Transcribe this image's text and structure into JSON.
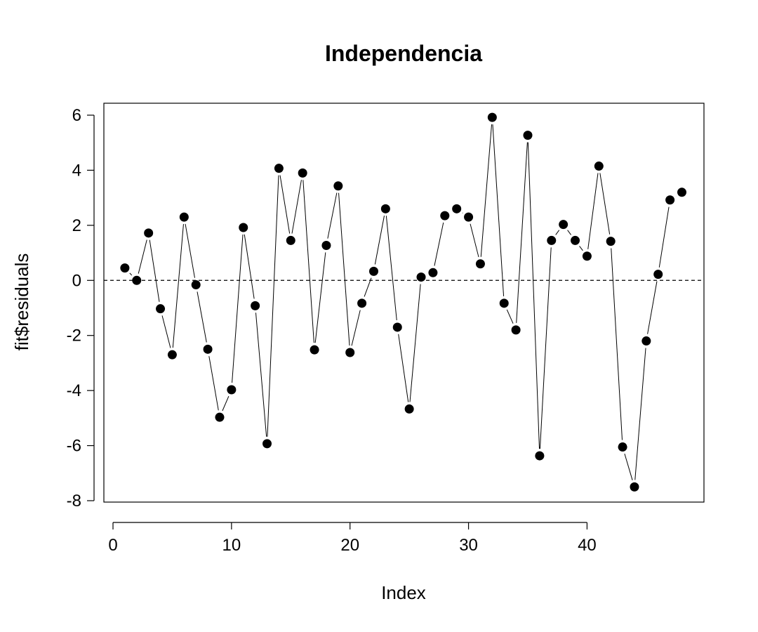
{
  "chart_data": {
    "type": "line",
    "style": "points-and-lines",
    "title": "Independencia",
    "xlabel": "Index",
    "ylabel": "fit$residuals",
    "xlim": [
      0,
      48
    ],
    "ylim": [
      -8,
      6
    ],
    "xticks": [
      0,
      10,
      20,
      30,
      40
    ],
    "yticks": [
      -8,
      -6,
      -4,
      -2,
      0,
      2,
      4,
      6
    ],
    "reference_line": {
      "y": 0,
      "style": "dashed"
    },
    "grid": false,
    "series": [
      {
        "x": [
          1,
          2,
          3,
          4,
          5,
          6,
          7,
          8,
          9,
          10,
          11,
          12,
          13,
          14,
          15,
          16,
          17,
          18,
          19,
          20,
          21,
          22,
          23,
          24,
          25,
          26,
          27,
          28,
          29,
          30,
          31,
          32,
          33,
          34,
          35,
          36,
          37,
          38,
          39,
          40,
          41,
          42,
          43,
          44,
          45,
          46,
          47,
          48
        ],
        "values": [
          0.45,
          0.0,
          1.72,
          -1.03,
          -2.7,
          2.3,
          -0.16,
          -2.5,
          -4.97,
          -3.97,
          1.92,
          -0.92,
          -5.93,
          4.07,
          1.45,
          3.9,
          -2.52,
          1.27,
          3.43,
          -2.62,
          -0.83,
          0.33,
          2.6,
          -1.7,
          -4.67,
          0.12,
          0.28,
          2.35,
          2.6,
          2.3,
          0.6,
          5.92,
          -0.83,
          -1.8,
          5.27,
          -6.37,
          1.45,
          2.03,
          1.45,
          0.88,
          4.15,
          1.42,
          -6.05,
          -7.5,
          -2.2,
          0.22,
          2.92,
          3.2
        ]
      }
    ]
  }
}
